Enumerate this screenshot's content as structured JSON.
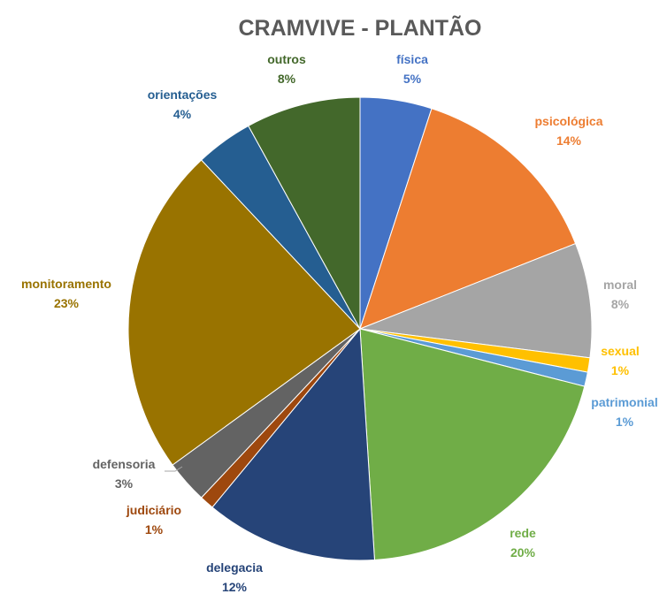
{
  "chart_data": {
    "type": "pie",
    "title": "CRAMVIVE - PLANTÃO",
    "slices": [
      {
        "label": "física",
        "value": 5,
        "pct": "5%",
        "color": "#4472C4"
      },
      {
        "label": "psicológica",
        "value": 14,
        "pct": "14%",
        "color": "#ED7D31"
      },
      {
        "label": "moral",
        "value": 8,
        "pct": "8%",
        "color": "#A5A5A5"
      },
      {
        "label": "sexual",
        "value": 1,
        "pct": "1%",
        "color": "#FFC000"
      },
      {
        "label": "patrimonial",
        "value": 1,
        "pct": "1%",
        "color": "#5B9BD5"
      },
      {
        "label": "rede",
        "value": 20,
        "pct": "20%",
        "color": "#70AD47"
      },
      {
        "label": "delegacia",
        "value": 12,
        "pct": "12%",
        "color": "#264478"
      },
      {
        "label": "judiciário",
        "value": 1,
        "pct": "1%",
        "color": "#9E480E"
      },
      {
        "label": "defensoria",
        "value": 3,
        "pct": "3%",
        "color": "#636363"
      },
      {
        "label": "monitoramento",
        "value": 23,
        "pct": "23%",
        "color": "#997300"
      },
      {
        "label": "orientações",
        "value": 4,
        "pct": "4%",
        "color": "#255E91"
      },
      {
        "label": "outros",
        "value": 8,
        "pct": "8%",
        "color": "#43682B"
      }
    ]
  }
}
